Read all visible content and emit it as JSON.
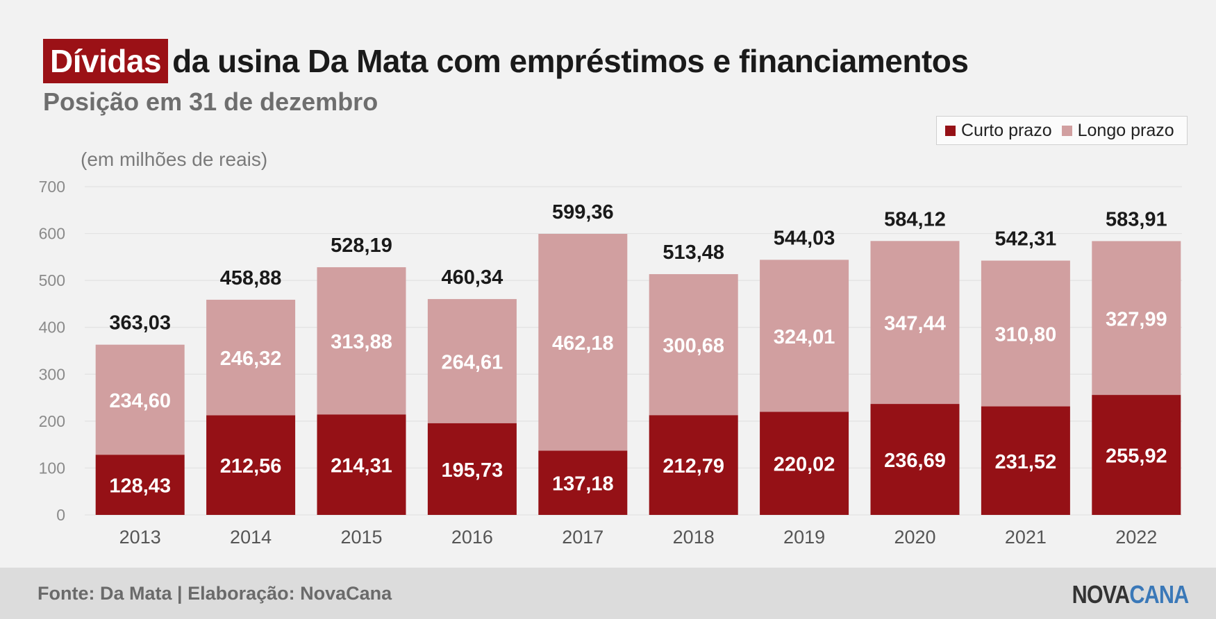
{
  "header": {
    "title_highlight": "Dívidas",
    "title_rest": "da usina Da Mata com empréstimos e financiamentos",
    "subtitle": "Posição em 31 de dezembro"
  },
  "unit_note": "(em milhões de reais)",
  "legend": {
    "short_label": "Curto prazo",
    "long_label": "Longo prazo"
  },
  "colors": {
    "short": "#951116",
    "long": "#d19fa0",
    "highlight": "#9b1116"
  },
  "chart_data": {
    "type": "bar",
    "stacked": true,
    "categories": [
      "2013",
      "2014",
      "2015",
      "2016",
      "2017",
      "2018",
      "2019",
      "2020",
      "2021",
      "2022"
    ],
    "series": [
      {
        "name": "Curto prazo",
        "values": [
          128.43,
          212.56,
          214.31,
          195.73,
          137.18,
          212.79,
          220.02,
          236.69,
          231.52,
          255.92
        ],
        "labels": [
          "128,43",
          "212,56",
          "214,31",
          "195,73",
          "137,18",
          "212,79",
          "220,02",
          "236,69",
          "231,52",
          "255,92"
        ]
      },
      {
        "name": "Longo prazo",
        "values": [
          234.6,
          246.32,
          313.88,
          264.61,
          462.18,
          300.68,
          324.01,
          347.44,
          310.8,
          327.99
        ],
        "labels": [
          "234,60",
          "246,32",
          "313,88",
          "264,61",
          "462,18",
          "300,68",
          "324,01",
          "347,44",
          "310,80",
          "327,99"
        ]
      }
    ],
    "totals": [
      363.03,
      458.88,
      528.19,
      460.34,
      599.36,
      513.48,
      544.03,
      584.12,
      542.31,
      583.91
    ],
    "total_labels": [
      "363,03",
      "458,88",
      "528,19",
      "460,34",
      "599,36",
      "513,48",
      "544,03",
      "584,12",
      "542,31",
      "583,91"
    ],
    "ylim": [
      0,
      700
    ],
    "yticks": [
      0,
      100,
      200,
      300,
      400,
      500,
      600,
      700
    ],
    "grid": true,
    "legend_position": "top-right"
  },
  "footer": {
    "source": "Fonte: Da Mata | Elaboração: NovaCana",
    "logo_part1": "NOVA",
    "logo_part2": "CANA"
  }
}
